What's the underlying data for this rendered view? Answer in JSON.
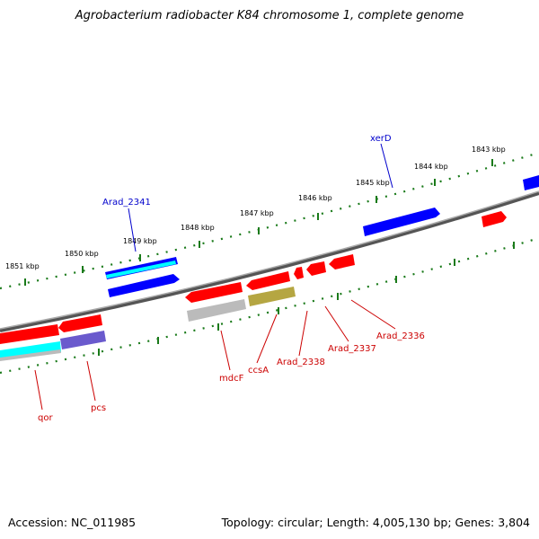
{
  "title": "Agrobacterium radiobacter K84 chromosome 1, complete genome",
  "footer": {
    "accession": "Accession: NC_011985",
    "summary": "Topology: circular; Length: 4,005,130 bp; Genes: 3,804"
  },
  "colors": {
    "backbone": "#888888",
    "tick": "#1a7a1a",
    "gene_red": "#ff0000",
    "gene_blue": "#0000ff",
    "gene_cyan": "#00ffff",
    "gene_gray": "#bbbbbb",
    "gene_slate": "#6a5acd",
    "gene_olive": "#b5a642",
    "label_red": "#cc0000",
    "label_blue": "#0000cc"
  },
  "ticks": [
    {
      "label": "1843 kbp"
    },
    {
      "label": "1844 kbp"
    },
    {
      "label": "1845 kbp"
    },
    {
      "label": "1846 kbp"
    },
    {
      "label": "1847 kbp"
    },
    {
      "label": "1848 kbp"
    },
    {
      "label": "1849 kbp"
    },
    {
      "label": "1850 kbp"
    },
    {
      "label": "1851 kbp"
    }
  ],
  "gene_labels": [
    {
      "name": "xerD"
    },
    {
      "name": "Arad_2341"
    },
    {
      "name": "Arad_2336"
    },
    {
      "name": "Arad_2337"
    },
    {
      "name": "Arad_2338"
    },
    {
      "name": "ccsA"
    },
    {
      "name": "mdcF"
    },
    {
      "name": "pcs"
    },
    {
      "name": "qor"
    }
  ]
}
